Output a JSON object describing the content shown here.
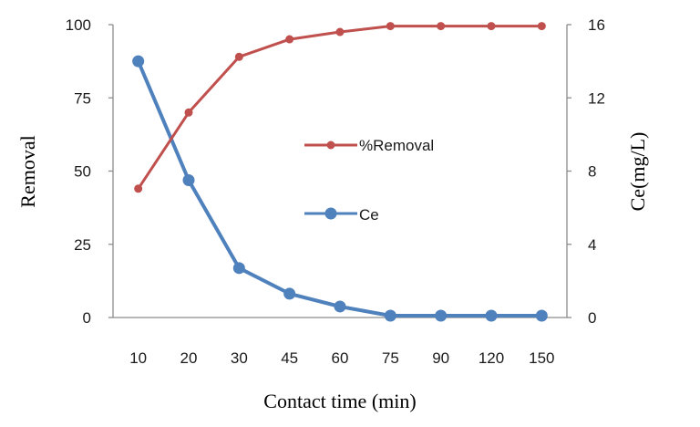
{
  "chart_data": {
    "type": "line",
    "categories": [
      "10",
      "20",
      "30",
      "45",
      "60",
      "75",
      "90",
      "120",
      "150"
    ],
    "xlabel": "Contact time (min)",
    "ylabel_left": "Removal",
    "ylabel_right": "Ce(mg/L)",
    "ylim_left": [
      0,
      100
    ],
    "ylim_right": [
      0,
      16
    ],
    "yticks_left": [
      "0",
      "25",
      "50",
      "75",
      "100"
    ],
    "yticks_right": [
      "0",
      "4",
      "8",
      "12",
      "16"
    ],
    "grid": false,
    "legend_position": "center-right",
    "series": [
      {
        "name": "%Removal",
        "axis": "left",
        "color": "#c0504d",
        "marker": "circle-small",
        "values": [
          44,
          70,
          89,
          95,
          97.5,
          99.5,
          99.5,
          99.5,
          99.5
        ]
      },
      {
        "name": "Ce",
        "axis": "right",
        "color": "#4f81bd",
        "marker": "circle-large",
        "values": [
          14,
          7.5,
          2.7,
          1.3,
          0.6,
          0.1,
          0.1,
          0.1,
          0.1
        ]
      }
    ]
  }
}
